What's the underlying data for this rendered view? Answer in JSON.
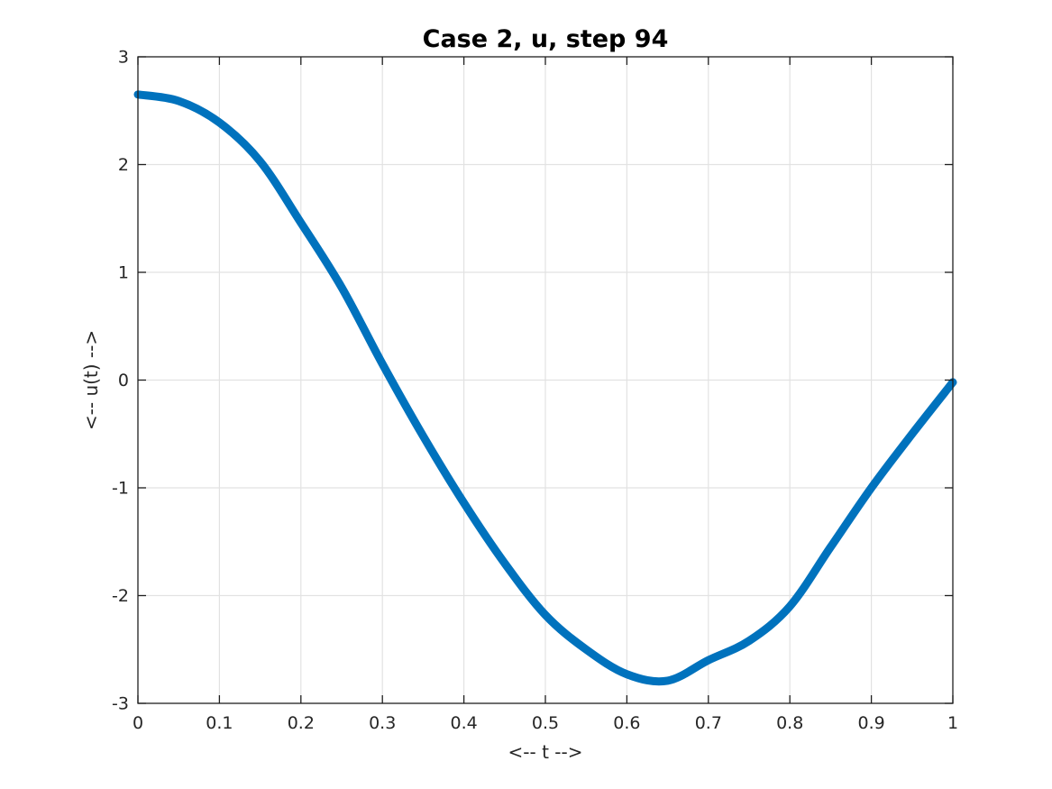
{
  "figure": {
    "background_color": "#ffffff"
  },
  "chart_data": {
    "type": "line",
    "title": "Case 2, u, step 94",
    "xlabel": "<-- t -->",
    "ylabel": "<-- u(t) -->",
    "xlim": [
      0,
      1
    ],
    "ylim": [
      -3,
      3
    ],
    "xticks": [
      0,
      0.1,
      0.2,
      0.3,
      0.4,
      0.5,
      0.6,
      0.7,
      0.8,
      0.9,
      1
    ],
    "xtick_labels": [
      "0",
      "0.1",
      "0.2",
      "0.3",
      "0.4",
      "0.5",
      "0.6",
      "0.7",
      "0.8",
      "0.9",
      "1"
    ],
    "yticks": [
      -3,
      -2,
      -1,
      0,
      1,
      2,
      3
    ],
    "ytick_labels": [
      "-3",
      "-2",
      "-1",
      "0",
      "1",
      "2",
      "3"
    ],
    "grid": true,
    "box": true,
    "legend": "none",
    "series": [
      {
        "name": "u",
        "color": "#0072bd",
        "line_width": 9,
        "x": [
          0,
          0.05,
          0.1,
          0.15,
          0.2,
          0.25,
          0.3,
          0.35,
          0.4,
          0.45,
          0.5,
          0.55,
          0.6,
          0.65,
          0.7,
          0.75,
          0.8,
          0.85,
          0.9,
          0.95,
          1
        ],
        "y": [
          2.65,
          2.59,
          2.39,
          2.03,
          1.46,
          0.86,
          0.15,
          -0.52,
          -1.14,
          -1.7,
          -2.18,
          -2.5,
          -2.73,
          -2.79,
          -2.6,
          -2.42,
          -2.1,
          -1.55,
          -1.0,
          -0.5,
          -0.02
        ]
      }
    ],
    "colors": {
      "line": "#0072bd",
      "grid": "#e2e2e2",
      "axis": "#1f1f1f",
      "tick_text": "#262626",
      "title_text": "#000000"
    }
  }
}
